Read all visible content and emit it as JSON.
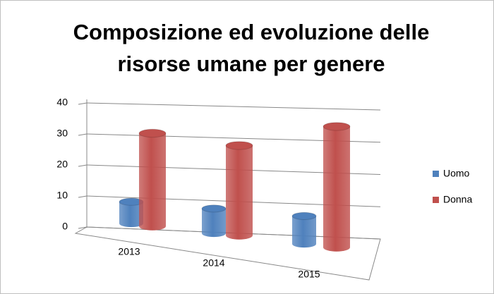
{
  "chart_data": {
    "type": "bar3d",
    "title": "Composizione ed evoluzione delle risorse umane per genere",
    "categories": [
      "2013",
      "2014",
      "2015"
    ],
    "series": [
      {
        "name": "Uomo",
        "color": "#4f81bd",
        "values": [
          7,
          8,
          9
        ]
      },
      {
        "name": "Donna",
        "color": "#c0504d",
        "values": [
          30,
          29,
          39
        ]
      }
    ],
    "ylim": [
      0,
      40
    ],
    "yticks": [
      0,
      10,
      20,
      30,
      40
    ],
    "grid": true,
    "legend": "right"
  }
}
